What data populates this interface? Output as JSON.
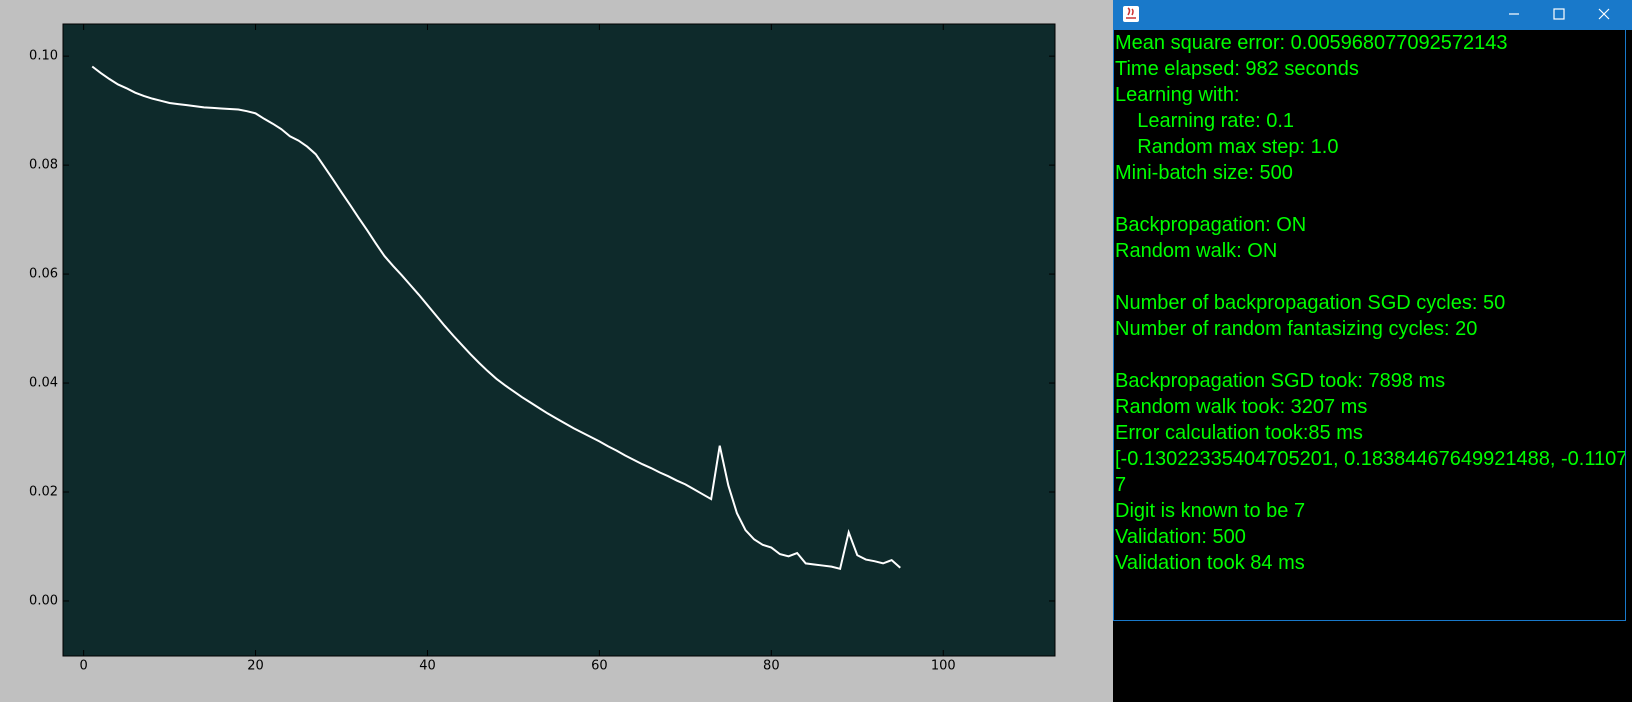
{
  "chart_data": {
    "type": "line",
    "x": [
      1,
      2,
      3,
      4,
      5,
      6,
      7,
      8,
      9,
      10,
      11,
      12,
      13,
      14,
      15,
      16,
      17,
      18,
      19,
      20,
      21,
      22,
      23,
      24,
      25,
      26,
      27,
      28,
      29,
      30,
      31,
      32,
      33,
      34,
      35,
      36,
      37,
      38,
      39,
      40,
      41,
      42,
      43,
      44,
      45,
      46,
      47,
      48,
      49,
      50,
      51,
      52,
      53,
      54,
      55,
      56,
      57,
      58,
      59,
      60,
      61,
      62,
      63,
      64,
      65,
      66,
      67,
      68,
      69,
      70,
      71,
      72,
      73,
      74,
      75,
      76,
      77,
      78,
      79,
      80,
      81,
      82,
      83,
      84,
      85,
      86,
      87,
      88,
      89,
      90,
      91,
      92,
      93,
      94,
      95
    ],
    "values": [
      0.0981,
      0.0969,
      0.0958,
      0.0948,
      0.0941,
      0.0933,
      0.0927,
      0.0922,
      0.0918,
      0.0914,
      0.0912,
      0.091,
      0.0908,
      0.0906,
      0.0905,
      0.0904,
      0.0903,
      0.0902,
      0.0899,
      0.0895,
      0.0885,
      0.0876,
      0.0866,
      0.0853,
      0.0845,
      0.0834,
      0.082,
      0.0797,
      0.0774,
      0.075,
      0.0727,
      0.0703,
      0.068,
      0.0656,
      0.0633,
      0.0615,
      0.0598,
      0.058,
      0.0562,
      0.0543,
      0.0524,
      0.0505,
      0.0487,
      0.047,
      0.0453,
      0.0437,
      0.0422,
      0.0408,
      0.0396,
      0.0385,
      0.0374,
      0.0364,
      0.0354,
      0.0344,
      0.0335,
      0.0326,
      0.0317,
      0.0309,
      0.0301,
      0.0293,
      0.0284,
      0.0276,
      0.0267,
      0.0259,
      0.0251,
      0.0244,
      0.0236,
      0.0229,
      0.0221,
      0.0214,
      0.0205,
      0.0196,
      0.0187,
      0.0285,
      0.0212,
      0.0161,
      0.013,
      0.0113,
      0.0103,
      0.0098,
      0.0086,
      0.0082,
      0.0088,
      0.0069,
      0.0067,
      0.0065,
      0.0063,
      0.0059,
      0.0126,
      0.0084,
      0.0076,
      0.0073,
      0.0069,
      0.0075,
      0.0061
    ],
    "color": "#ffffff",
    "xlim": [
      -2.4,
      113
    ],
    "xticks": [
      0,
      20,
      40,
      60,
      80,
      100
    ],
    "ylim": [
      -0.0101,
      0.1059
    ],
    "yticks": [
      {
        "value": 0,
        "label": "0.00"
      },
      {
        "value": 0.02,
        "label": "0.02"
      },
      {
        "value": 0.04,
        "label": "0.04"
      },
      {
        "value": 0.06,
        "label": "0.06"
      },
      {
        "value": 0.08,
        "label": "0.08"
      },
      {
        "value": 0.1,
        "label": "0.10"
      }
    ]
  },
  "window": {
    "paragraphs": [
      [
        "Mean square error: 0.005968077092572143",
        "Time elapsed: 982 seconds",
        "Learning with:",
        "    Learning rate: 0.1",
        "    Random max step: 1.0",
        "Mini-batch size: 500"
      ],
      [
        "Backpropagation: ON",
        "Random walk: ON"
      ],
      [
        "Number of backpropagation SGD cycles: 50",
        "Number of random fantasizing cycles: 20"
      ],
      [
        "Backpropagation SGD took: 7898 ms",
        "Random walk took: 3207 ms",
        "Error calculation took:85 ms",
        "[-0.13022335404705201, 0.18384467649921488, -0.1107",
        "7",
        "Digit is known to be 7",
        "Validation: 500",
        "Validation took 84 ms"
      ]
    ]
  }
}
